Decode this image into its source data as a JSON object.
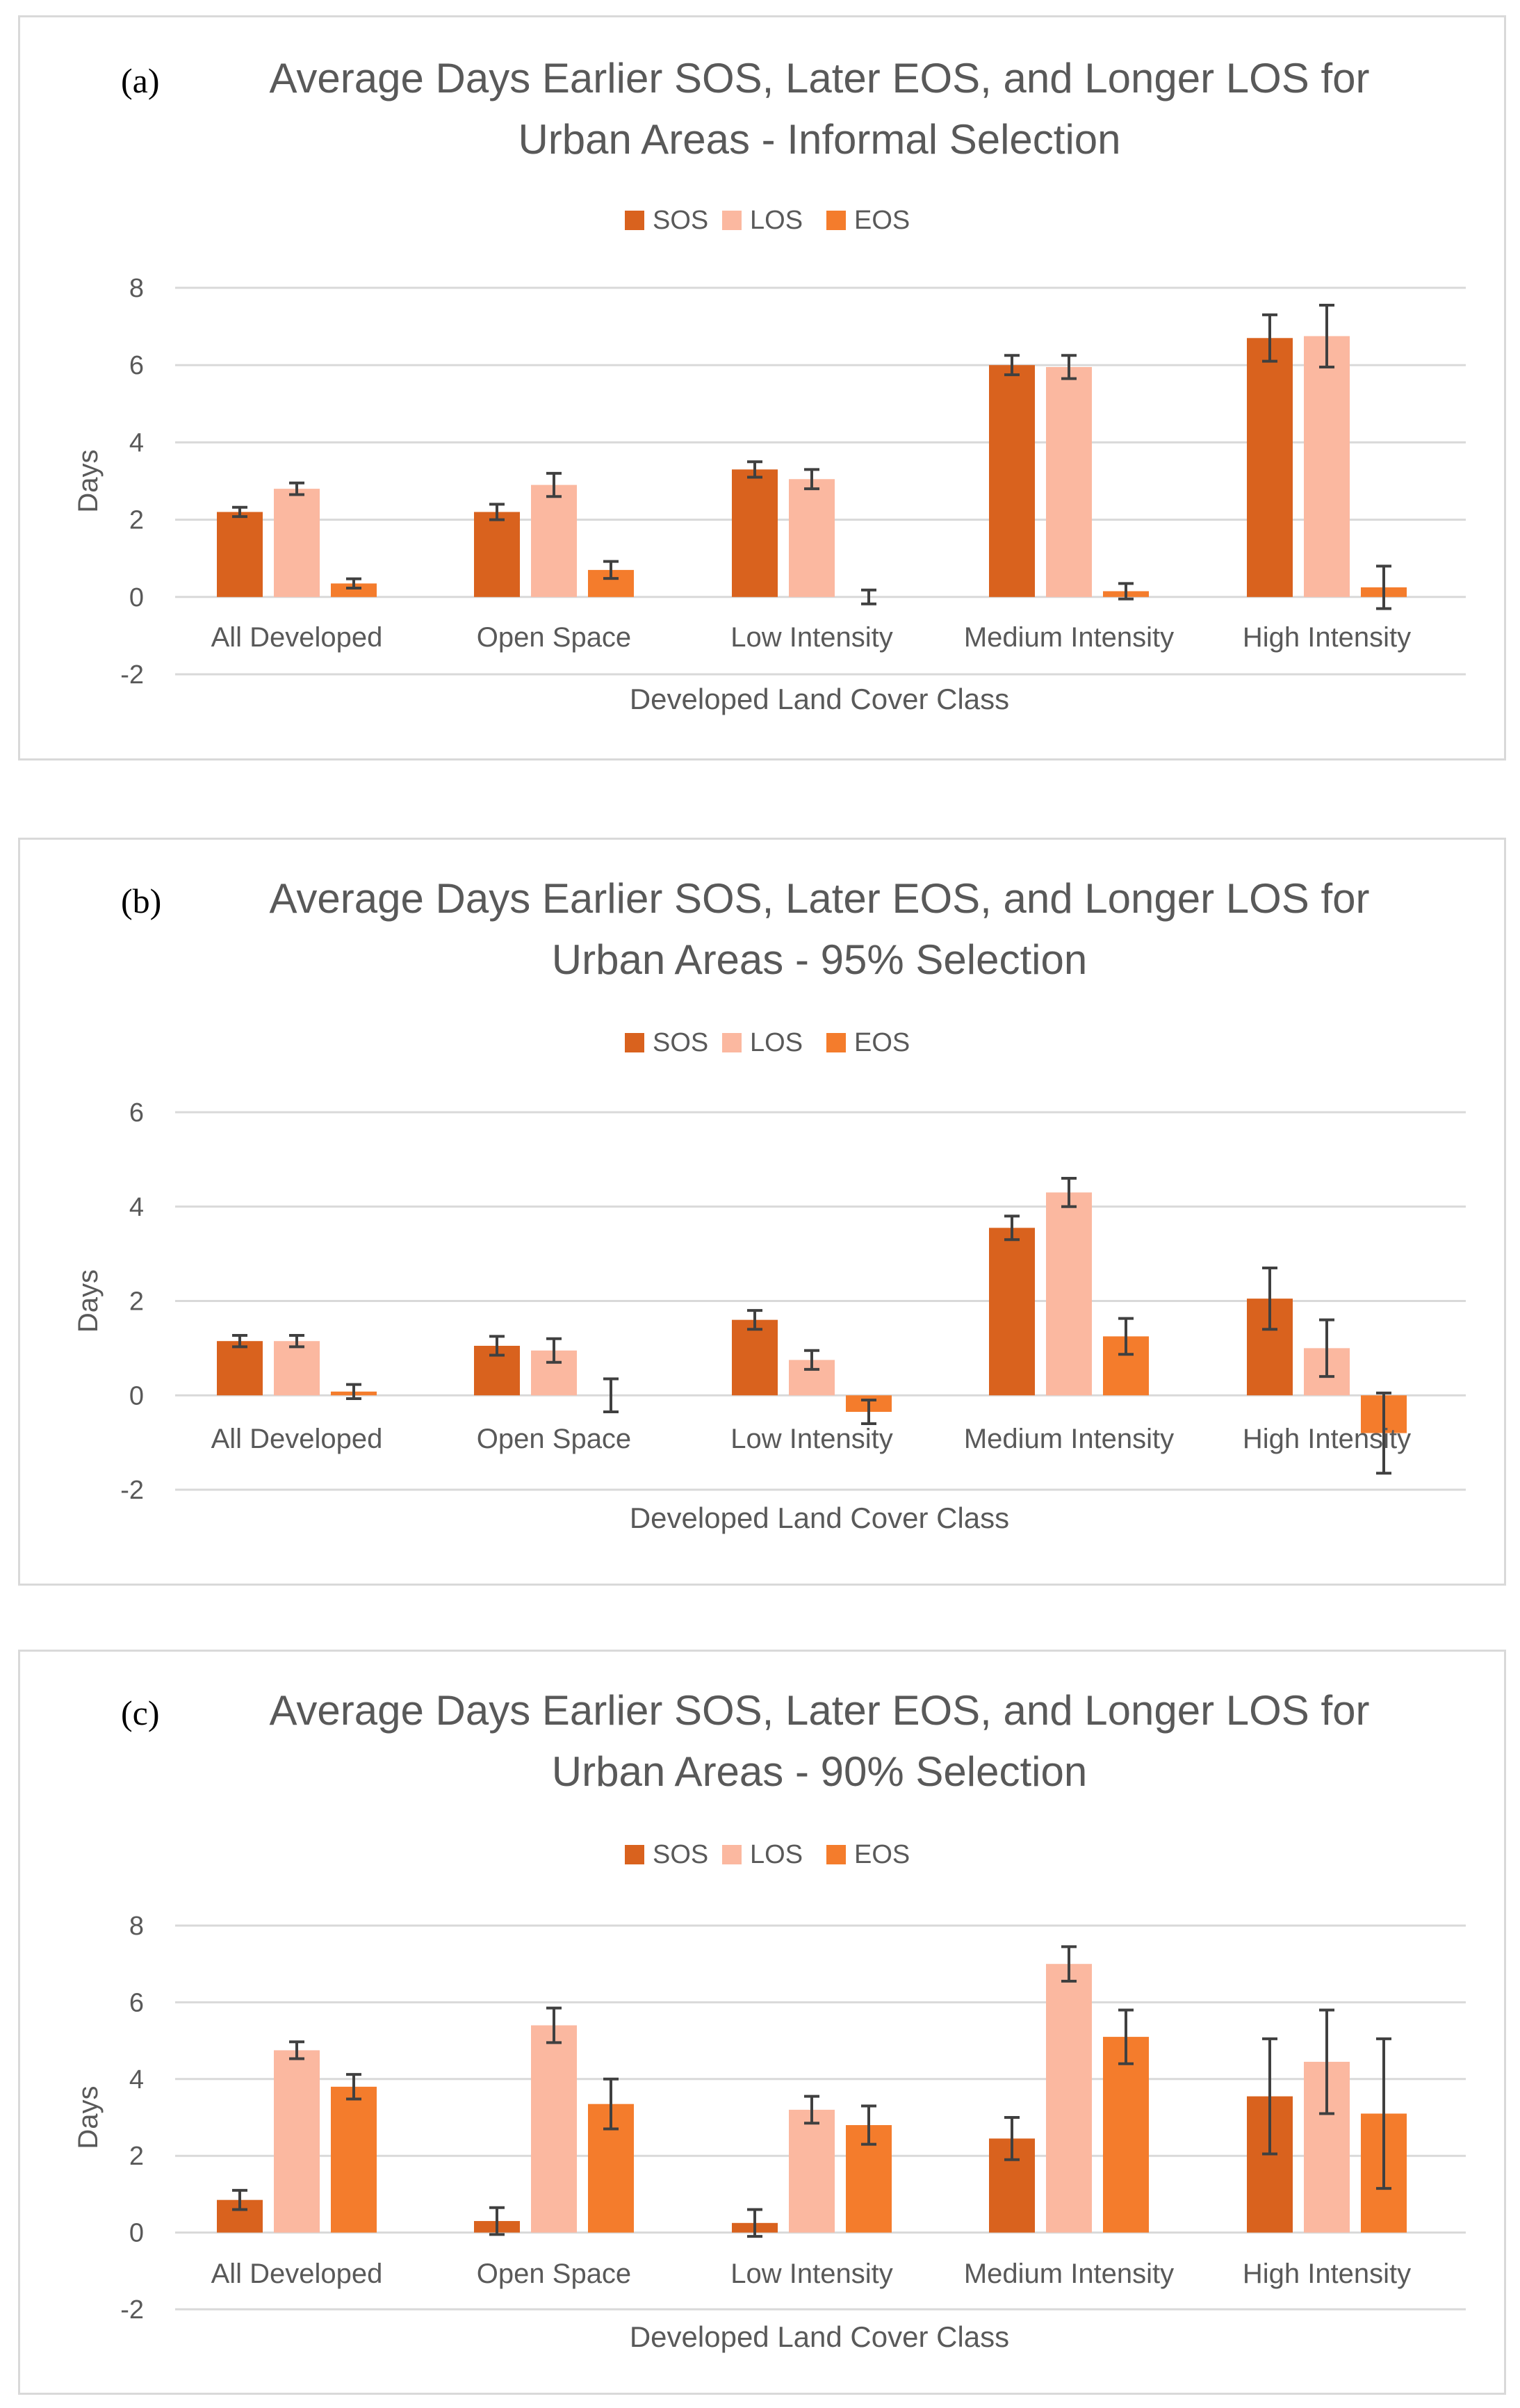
{
  "chart_data": [
    {
      "type": "bar",
      "panel_label": "(a)",
      "title_line1": "Average Days Earlier SOS, Later EOS, and Longer LOS for",
      "title_line2": "Urban Areas - Informal Selection",
      "xlabel": "Developed Land Cover Class",
      "ylabel": "Days",
      "ylim": [
        -2,
        8
      ],
      "yticks": [
        -2,
        0,
        2,
        4,
        6,
        8
      ],
      "grid": true,
      "legend_position": "top",
      "categories": [
        "All Developed",
        "Open Space",
        "Low Intensity",
        "Medium Intensity",
        "High Intensity"
      ],
      "series": [
        {
          "name": "SOS",
          "color": "#d9621e",
          "values": [
            2.2,
            2.2,
            3.3,
            6.0,
            6.7
          ],
          "errors": [
            0.12,
            0.2,
            0.2,
            0.25,
            0.6
          ]
        },
        {
          "name": "LOS",
          "color": "#fbb8a0",
          "values": [
            2.8,
            2.9,
            3.05,
            5.95,
            6.75
          ],
          "errors": [
            0.15,
            0.3,
            0.25,
            0.3,
            0.8
          ]
        },
        {
          "name": "EOS",
          "color": "#f47c2c",
          "values": [
            0.35,
            0.7,
            0.0,
            0.15,
            0.25
          ],
          "errors": [
            0.12,
            0.22,
            0.18,
            0.2,
            0.55
          ]
        }
      ]
    },
    {
      "type": "bar",
      "panel_label": "(b)",
      "title_line1": "Average Days Earlier SOS, Later EOS, and Longer LOS for",
      "title_line2": "Urban Areas - 95% Selection",
      "xlabel": "Developed Land Cover Class",
      "ylabel": "Days",
      "ylim": [
        -2,
        6
      ],
      "yticks": [
        -2,
        0,
        2,
        4,
        6
      ],
      "grid": true,
      "legend_position": "top",
      "categories": [
        "All Developed",
        "Open Space",
        "Low Intensity",
        "Medium Intensity",
        "High Intensity"
      ],
      "series": [
        {
          "name": "SOS",
          "color": "#d9621e",
          "values": [
            1.15,
            1.05,
            1.6,
            3.55,
            2.05
          ],
          "errors": [
            0.12,
            0.2,
            0.2,
            0.25,
            0.65
          ]
        },
        {
          "name": "LOS",
          "color": "#fbb8a0",
          "values": [
            1.15,
            0.95,
            0.75,
            4.3,
            1.0
          ],
          "errors": [
            0.12,
            0.25,
            0.2,
            0.3,
            0.6
          ]
        },
        {
          "name": "EOS",
          "color": "#f47c2c",
          "values": [
            0.08,
            0.0,
            -0.35,
            1.25,
            -0.8
          ],
          "errors": [
            0.15,
            0.35,
            0.25,
            0.38,
            0.85
          ]
        }
      ]
    },
    {
      "type": "bar",
      "panel_label": "(c)",
      "title_line1": "Average Days Earlier SOS, Later EOS, and Longer LOS for",
      "title_line2": "Urban Areas - 90% Selection",
      "xlabel": "Developed Land Cover Class",
      "ylabel": "Days",
      "ylim": [
        -2,
        8
      ],
      "yticks": [
        -2,
        0,
        2,
        4,
        6,
        8
      ],
      "grid": true,
      "legend_position": "top",
      "categories": [
        "All Developed",
        "Open Space",
        "Low Intensity",
        "Medium Intensity",
        "High Intensity"
      ],
      "series": [
        {
          "name": "SOS",
          "color": "#d9621e",
          "values": [
            0.85,
            0.3,
            0.25,
            2.45,
            3.55
          ],
          "errors": [
            0.25,
            0.35,
            0.35,
            0.55,
            1.5
          ]
        },
        {
          "name": "LOS",
          "color": "#fbb8a0",
          "values": [
            4.75,
            5.4,
            3.2,
            7.0,
            4.45
          ],
          "errors": [
            0.22,
            0.45,
            0.35,
            0.45,
            1.35
          ]
        },
        {
          "name": "EOS",
          "color": "#f47c2c",
          "values": [
            3.8,
            3.35,
            2.8,
            5.1,
            3.1
          ],
          "errors": [
            0.32,
            0.65,
            0.5,
            0.7,
            1.95
          ]
        }
      ]
    }
  ]
}
